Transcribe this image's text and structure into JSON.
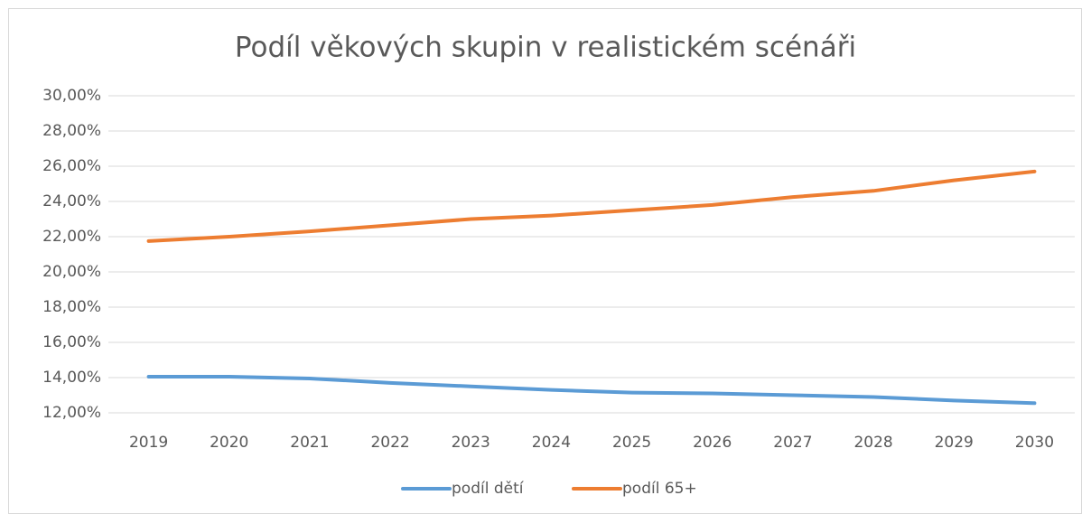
{
  "chart_data": {
    "type": "line",
    "title": "Podíl věkových skupin v realistickém scénáři",
    "categories": [
      "2019",
      "2020",
      "2021",
      "2022",
      "2023",
      "2024",
      "2025",
      "2026",
      "2027",
      "2028",
      "2029",
      "2030"
    ],
    "series": [
      {
        "name": "podíl dětí",
        "color": "#5b9bd5",
        "values": [
          14.05,
          14.05,
          13.95,
          13.7,
          13.5,
          13.3,
          13.15,
          13.1,
          13.0,
          12.9,
          12.7,
          12.55
        ]
      },
      {
        "name": "podíl 65+",
        "color": "#ed7d31",
        "values": [
          21.75,
          22.0,
          22.3,
          22.65,
          23.0,
          23.2,
          23.5,
          23.8,
          24.25,
          24.6,
          25.2,
          25.7
        ]
      }
    ],
    "ylim": [
      12,
      30
    ],
    "yticks": [
      {
        "value": 12,
        "label": "12,00%"
      },
      {
        "value": 14,
        "label": "14,00%"
      },
      {
        "value": 16,
        "label": "16,00%"
      },
      {
        "value": 18,
        "label": "18,00%"
      },
      {
        "value": 20,
        "label": "20,00%"
      },
      {
        "value": 22,
        "label": "22,00%"
      },
      {
        "value": 24,
        "label": "24,00%"
      },
      {
        "value": 26,
        "label": "26,00%"
      },
      {
        "value": 28,
        "label": "28,00%"
      },
      {
        "value": 30,
        "label": "30,00%"
      }
    ],
    "grid": true,
    "legend": "bottom"
  }
}
